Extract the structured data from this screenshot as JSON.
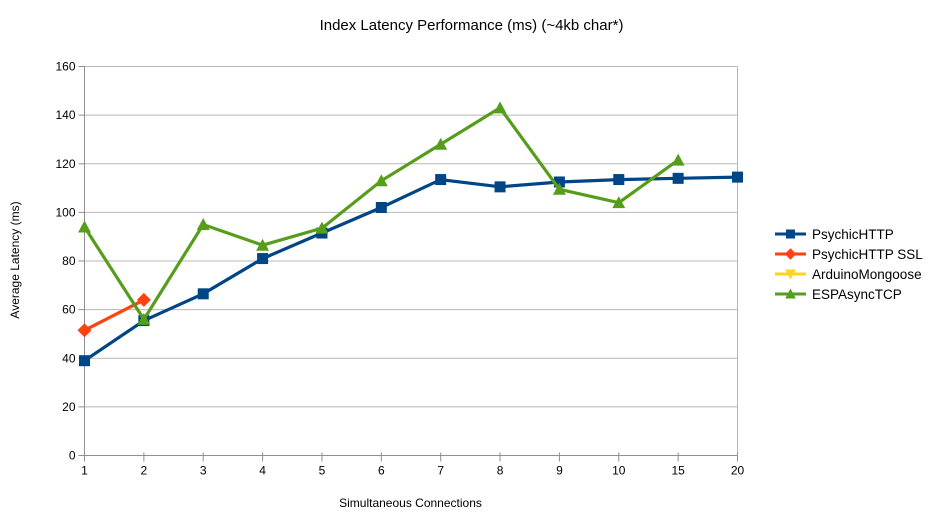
{
  "title": "Index Latency Performance (ms) (~4kb char*)",
  "colors": {
    "background": "#ffffff",
    "grid": "#b8b8b8",
    "axis": "#8f8f8f",
    "text": "#000000"
  },
  "chart_data": {
    "type": "line",
    "title": "Index Latency Performance (ms) (~4kb char*)",
    "xlabel": "Simultaneous Connections",
    "ylabel": "Average Latency (ms)",
    "categories": [
      "1",
      "2",
      "3",
      "4",
      "5",
      "6",
      "7",
      "8",
      "9",
      "10",
      "15",
      "20"
    ],
    "ylim": [
      0,
      160
    ],
    "y_ticks": [
      0,
      20,
      40,
      60,
      80,
      100,
      120,
      140,
      160
    ],
    "grid": "horizontal",
    "legend_position": "right",
    "series": [
      {
        "name": "PsychicHTTP",
        "color": "#004586",
        "marker": "square",
        "values": [
          39,
          55.5,
          66.5,
          81,
          91.5,
          102,
          113.5,
          110.5,
          112.5,
          113.5,
          114,
          114.5
        ]
      },
      {
        "name": "PsychicHTTP SSL",
        "color": "#ff420e",
        "marker": "diamond",
        "values": [
          51.5,
          64,
          null,
          null,
          null,
          null,
          null,
          null,
          null,
          null,
          null,
          null
        ]
      },
      {
        "name": "ArduinoMongoose",
        "color": "#ffd320",
        "marker": "triangle-down",
        "values": [
          null,
          null,
          null,
          null,
          null,
          null,
          null,
          null,
          null,
          null,
          null,
          null
        ]
      },
      {
        "name": "ESPAsyncTCP",
        "color": "#579d1c",
        "marker": "triangle-up",
        "values": [
          94,
          56,
          95,
          86.5,
          93.5,
          113,
          128,
          143,
          109.5,
          104,
          121.5,
          null
        ]
      }
    ]
  }
}
